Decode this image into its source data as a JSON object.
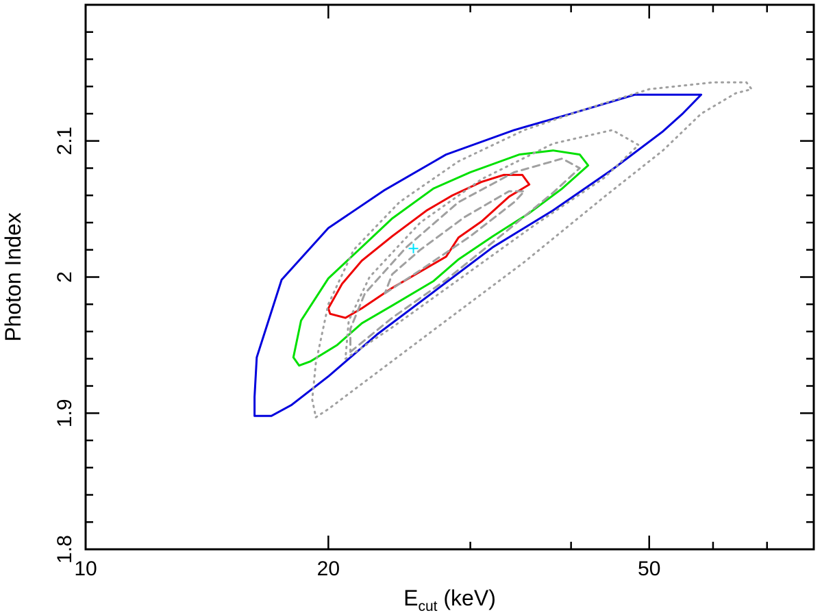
{
  "chart_data": {
    "type": "contour",
    "xlabel": {
      "main": "E",
      "sub": "cut",
      "unit": " (keV)"
    },
    "ylabel": "Photon Index",
    "xscale": "log",
    "xlim": [
      10,
      80
    ],
    "ylim": [
      1.8,
      2.2
    ],
    "x_major_ticks": [
      10,
      20,
      50
    ],
    "x_tick_labels": [
      "10",
      "20",
      "50"
    ],
    "x_minor_ticks": [
      30,
      40,
      60,
      70
    ],
    "y_major_ticks": [
      1.8,
      1.9,
      2.0,
      2.1
    ],
    "y_tick_labels": [
      "1.8",
      "1.9",
      "2",
      "2.1"
    ],
    "y_minor_step": 0.02,
    "best_fit": {
      "x": 25.5,
      "y": 2.021,
      "color": "#00e5ff"
    },
    "contours": [
      {
        "level": "red",
        "color": "#ee0000",
        "style": "solid",
        "points": [
          [
            20.0,
            1.977
          ],
          [
            20.1,
            1.973
          ],
          [
            21.0,
            1.97
          ],
          [
            22.0,
            1.977
          ],
          [
            24.0,
            1.992
          ],
          [
            26.0,
            2.004
          ],
          [
            28.0,
            2.015
          ],
          [
            29.0,
            2.029
          ],
          [
            31.0,
            2.041
          ],
          [
            33.5,
            2.059
          ],
          [
            35.5,
            2.068
          ],
          [
            34.8,
            2.075
          ],
          [
            33.0,
            2.075
          ],
          [
            31.0,
            2.07
          ],
          [
            28.5,
            2.06
          ],
          [
            26.5,
            2.049
          ],
          [
            24.0,
            2.03
          ],
          [
            22.0,
            2.012
          ],
          [
            20.8,
            1.995
          ],
          [
            20.0,
            1.977
          ]
        ]
      },
      {
        "level": "green",
        "color": "#00e000",
        "style": "solid",
        "points": [
          [
            18.1,
            1.941
          ],
          [
            18.4,
            1.935
          ],
          [
            19.0,
            1.938
          ],
          [
            20.5,
            1.95
          ],
          [
            22.0,
            1.966
          ],
          [
            24.0,
            1.979
          ],
          [
            27.0,
            1.997
          ],
          [
            29.0,
            2.013
          ],
          [
            32.0,
            2.03
          ],
          [
            35.5,
            2.047
          ],
          [
            39.0,
            2.065
          ],
          [
            42.0,
            2.082
          ],
          [
            41.0,
            2.09
          ],
          [
            38.0,
            2.093
          ],
          [
            34.5,
            2.09
          ],
          [
            30.0,
            2.077
          ],
          [
            27.0,
            2.065
          ],
          [
            24.0,
            2.043
          ],
          [
            22.0,
            2.022
          ],
          [
            20.0,
            1.999
          ],
          [
            18.5,
            1.968
          ],
          [
            18.1,
            1.941
          ]
        ]
      },
      {
        "level": "blue",
        "color": "#0000dd",
        "style": "solid",
        "points": [
          [
            16.2,
            1.898
          ],
          [
            17.0,
            1.898
          ],
          [
            18.0,
            1.906
          ],
          [
            20.0,
            1.927
          ],
          [
            23.0,
            1.958
          ],
          [
            27.0,
            1.989
          ],
          [
            32.0,
            2.022
          ],
          [
            38.0,
            2.049
          ],
          [
            45.0,
            2.079
          ],
          [
            52.0,
            2.107
          ],
          [
            55.0,
            2.12
          ],
          [
            58.0,
            2.134
          ],
          [
            48.0,
            2.134
          ],
          [
            40.0,
            2.12
          ],
          [
            34.0,
            2.108
          ],
          [
            28.0,
            2.09
          ],
          [
            23.5,
            2.064
          ],
          [
            20.0,
            2.036
          ],
          [
            17.5,
            1.998
          ],
          [
            16.3,
            1.941
          ],
          [
            16.2,
            1.912
          ],
          [
            16.2,
            1.898
          ]
        ]
      },
      {
        "level": "grey-dotted-outer",
        "color": "#a0a0a0",
        "style": "dotted",
        "points": [
          [
            19.3,
            1.897
          ],
          [
            20.0,
            1.903
          ],
          [
            23.0,
            1.93
          ],
          [
            28.0,
            1.968
          ],
          [
            35.0,
            2.011
          ],
          [
            44.0,
            2.059
          ],
          [
            52.0,
            2.093
          ],
          [
            58.0,
            2.12
          ],
          [
            64.0,
            2.135
          ],
          [
            67.0,
            2.138
          ],
          [
            66.0,
            2.143
          ],
          [
            60.0,
            2.143
          ],
          [
            50.0,
            2.138
          ],
          [
            42.0,
            2.124
          ],
          [
            35.0,
            2.108
          ],
          [
            29.0,
            2.085
          ],
          [
            24.5,
            2.055
          ],
          [
            21.5,
            2.02
          ],
          [
            20.0,
            1.98
          ],
          [
            19.3,
            1.937
          ],
          [
            19.1,
            1.91
          ],
          [
            19.3,
            1.897
          ]
        ]
      },
      {
        "level": "grey-dotted-inner",
        "color": "#a0a0a0",
        "style": "dotted",
        "points": [
          [
            21.0,
            1.94
          ],
          [
            24.0,
            1.963
          ],
          [
            29.0,
            1.998
          ],
          [
            36.0,
            2.038
          ],
          [
            44.0,
            2.073
          ],
          [
            48.5,
            2.097
          ],
          [
            45.0,
            2.108
          ],
          [
            38.0,
            2.098
          ],
          [
            31.0,
            2.072
          ],
          [
            26.0,
            2.04
          ],
          [
            22.5,
            2.0
          ],
          [
            21.2,
            1.968
          ],
          [
            21.0,
            1.94
          ]
        ]
      },
      {
        "level": "grey-dashed-outer",
        "color": "#a0a0a0",
        "style": "dashed",
        "points": [
          [
            21.3,
            1.945
          ],
          [
            24.0,
            1.97
          ],
          [
            28.0,
            1.998
          ],
          [
            33.0,
            2.032
          ],
          [
            38.0,
            2.062
          ],
          [
            41.0,
            2.08
          ],
          [
            39.0,
            2.087
          ],
          [
            34.0,
            2.077
          ],
          [
            29.0,
            2.055
          ],
          [
            25.0,
            2.022
          ],
          [
            22.2,
            1.988
          ],
          [
            21.3,
            1.962
          ],
          [
            21.3,
            1.945
          ]
        ]
      },
      {
        "level": "grey-dashed-inner",
        "color": "#a0a0a0",
        "style": "dashed",
        "points": [
          [
            23.5,
            1.988
          ],
          [
            26.0,
            2.005
          ],
          [
            30.0,
            2.03
          ],
          [
            34.0,
            2.055
          ],
          [
            35.0,
            2.063
          ],
          [
            33.5,
            2.063
          ],
          [
            29.5,
            2.044
          ],
          [
            26.0,
            2.02
          ],
          [
            24.0,
            2.002
          ],
          [
            23.5,
            1.988
          ]
        ]
      }
    ]
  }
}
